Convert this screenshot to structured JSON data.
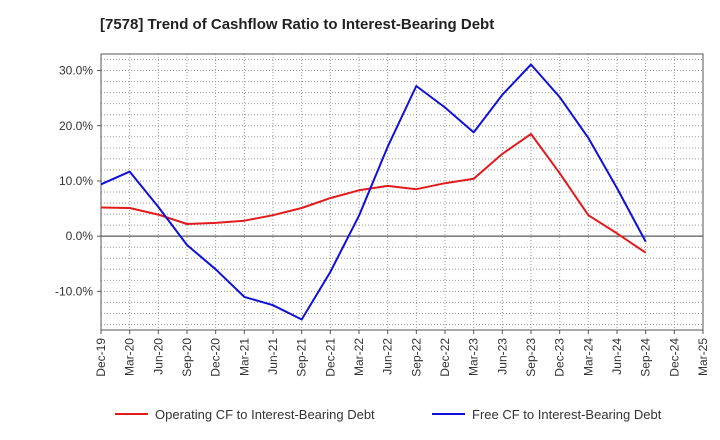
{
  "chart_data": {
    "type": "line",
    "title": "[7578]  Trend of Cashflow Ratio to Interest-Bearing Debt",
    "x": [
      "Dec-19",
      "Mar-20",
      "Jun-20",
      "Sep-20",
      "Dec-20",
      "Mar-21",
      "Jun-21",
      "Sep-21",
      "Dec-21",
      "Mar-22",
      "Jun-22",
      "Sep-22",
      "Dec-22",
      "Mar-23",
      "Jun-23",
      "Sep-23",
      "Dec-23",
      "Mar-24",
      "Jun-24",
      "Sep-24",
      "Dec-24",
      "Mar-25"
    ],
    "y_ticks": [
      "30.0%",
      "20.0%",
      "10.0%",
      "0.0%",
      "-10.0%"
    ],
    "y_tick_values": [
      30,
      20,
      10,
      0,
      -10
    ],
    "ylim": [
      -17,
      33
    ],
    "y_unit": "%",
    "grid": true,
    "legend_position": "bottom",
    "series": [
      {
        "name": "Operating CF to Interest-Bearing Debt",
        "color": "#e31a1c",
        "values": [
          5.2,
          5.1,
          3.9,
          2.2,
          2.4,
          2.8,
          3.8,
          5.1,
          6.9,
          8.3,
          9.1,
          8.5,
          9.6,
          10.4,
          14.9,
          18.5,
          11.4,
          3.8,
          0.5,
          -3.0,
          null,
          null
        ]
      },
      {
        "name": "Free CF to Interest-Bearing Debt",
        "color": "#1010d8",
        "values": [
          9.4,
          11.7,
          5.3,
          -1.6,
          -6.0,
          -11.0,
          -12.5,
          -15.1,
          -6.5,
          3.7,
          16.2,
          27.2,
          23.3,
          18.8,
          25.6,
          31.1,
          25.2,
          17.8,
          8.7,
          -1.0,
          null,
          null
        ]
      }
    ]
  }
}
